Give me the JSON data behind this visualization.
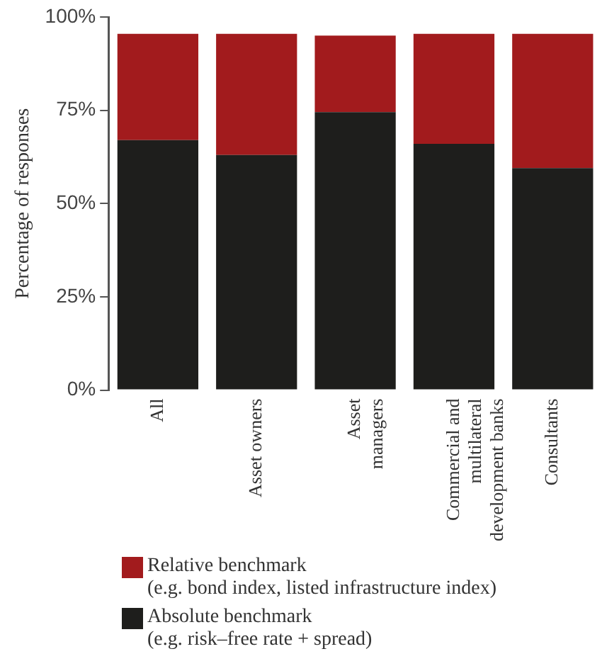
{
  "chart_data": {
    "type": "bar",
    "stacked": true,
    "ylabel": "Percentage of responses",
    "categories": [
      "All",
      "Asset owners",
      "Asset\nmanagers",
      "Commercial and\nmultilateral\ndevelopment banks",
      "Consultants"
    ],
    "series": [
      {
        "name": "Absolute benchmark\n(e.g. risk–free rate + spread)",
        "color": "#1e1e1c",
        "values": [
          67,
          63,
          74.5,
          66,
          59.5
        ]
      },
      {
        "name": "Relative benchmark\n(e.g. bond index, listed infrastructure index)",
        "color": "#a21b1d",
        "values": [
          28.5,
          32.5,
          20.5,
          29.5,
          36
        ]
      }
    ],
    "ylim": [
      0,
      100
    ],
    "yticks": [
      {
        "value": 0,
        "label": "0%"
      },
      {
        "value": 25,
        "label": "25%"
      },
      {
        "value": 50,
        "label": "50%"
      },
      {
        "value": 75,
        "label": "75%"
      },
      {
        "value": 100,
        "label": "100%"
      }
    ],
    "grid": false,
    "legend": "bottom"
  }
}
